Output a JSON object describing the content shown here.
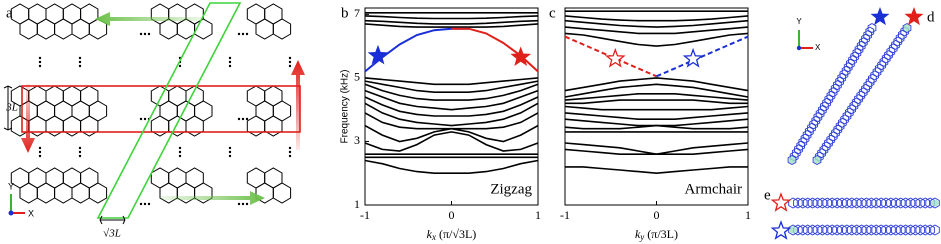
{
  "panel_labels": [
    "a",
    "b",
    "c",
    "d",
    "e"
  ],
  "panel_a": {
    "height_label": "3L",
    "width_label": "√3L",
    "axis_y": "Y",
    "axis_x": "X"
  },
  "panel_d": {
    "axis_y": "Y",
    "axis_x": "X"
  },
  "chart_data": [
    {
      "type": "line",
      "ylabel": "Frequency (kHz)",
      "xlabel": "k",
      "xlabel_sub": "x",
      "xlabel_unit": "(π/√3L)",
      "annotation": "Zigzag",
      "xlim": [
        -1,
        1
      ],
      "xticks": [
        -1,
        0,
        1
      ],
      "ylim": [
        1,
        7.2
      ],
      "yticks": [
        1,
        3,
        5,
        7
      ],
      "x": [
        -1,
        -0.8,
        -0.6,
        -0.4,
        -0.2,
        0,
        0.2,
        0.4,
        0.6,
        0.8,
        1
      ],
      "series": [
        {
          "color": "#000000",
          "values": [
            7.05,
            7.05,
            7.05,
            7.05,
            7.05,
            7.05,
            7.05,
            7.05,
            7.05,
            7.05,
            7.05
          ]
        },
        {
          "color": "#000000",
          "values": [
            6.95,
            6.93,
            6.9,
            6.88,
            6.87,
            6.87,
            6.87,
            6.88,
            6.9,
            6.93,
            6.95
          ]
        },
        {
          "color": "#000000",
          "values": [
            6.8,
            6.78,
            6.75,
            6.72,
            6.7,
            6.7,
            6.7,
            6.72,
            6.75,
            6.78,
            6.8
          ]
        },
        {
          "color": "#000000",
          "values": [
            6.7,
            6.66,
            6.62,
            6.6,
            6.6,
            6.6,
            6.6,
            6.6,
            6.62,
            6.66,
            6.7
          ]
        },
        {
          "color": "#1a2fd6",
          "values": [
            5.2,
            5.65,
            6.05,
            6.35,
            6.5,
            6.55,
            6.55,
            null,
            null,
            null,
            null
          ]
        },
        {
          "color": "#e0201b",
          "values": [
            null,
            null,
            null,
            null,
            null,
            6.55,
            6.55,
            6.4,
            6.1,
            5.7,
            5.2
          ]
        },
        {
          "color": "#000000",
          "values": [
            5.0,
            4.95,
            4.9,
            4.85,
            4.8,
            4.8,
            4.8,
            4.85,
            4.9,
            4.95,
            5.0
          ]
        },
        {
          "color": "#000000",
          "values": [
            4.9,
            4.8,
            4.7,
            4.6,
            4.55,
            4.55,
            4.55,
            4.6,
            4.7,
            4.8,
            4.9
          ]
        },
        {
          "color": "#000000",
          "values": [
            4.8,
            4.6,
            4.45,
            4.35,
            4.3,
            4.3,
            4.3,
            4.35,
            4.45,
            4.6,
            4.8
          ]
        },
        {
          "color": "#000000",
          "values": [
            4.6,
            4.4,
            4.2,
            4.1,
            4.05,
            4.0,
            4.05,
            4.1,
            4.2,
            4.4,
            4.6
          ]
        },
        {
          "color": "#000000",
          "values": [
            4.4,
            4.15,
            3.95,
            3.85,
            3.8,
            3.8,
            3.8,
            3.85,
            3.95,
            4.15,
            4.4
          ]
        },
        {
          "color": "#000000",
          "values": [
            4.2,
            3.9,
            3.7,
            3.6,
            3.55,
            3.5,
            3.55,
            3.6,
            3.7,
            3.9,
            4.2
          ]
        },
        {
          "color": "#000000",
          "values": [
            3.9,
            3.6,
            3.45,
            3.4,
            3.4,
            3.4,
            3.4,
            3.4,
            3.45,
            3.6,
            3.9
          ]
        },
        {
          "color": "#000000",
          "values": [
            3.5,
            3.2,
            3.0,
            3.1,
            3.3,
            3.4,
            3.3,
            3.1,
            3.0,
            3.2,
            3.5
          ]
        },
        {
          "color": "#000000",
          "values": [
            2.95,
            2.75,
            2.7,
            2.9,
            3.2,
            3.3,
            3.2,
            2.9,
            2.7,
            2.75,
            2.95
          ]
        },
        {
          "color": "#000000",
          "values": [
            2.6,
            2.6,
            2.6,
            2.6,
            2.6,
            2.6,
            2.6,
            2.6,
            2.6,
            2.6,
            2.6
          ]
        },
        {
          "color": "#000000",
          "values": [
            2.5,
            2.5,
            2.5,
            2.5,
            2.5,
            2.5,
            2.5,
            2.5,
            2.5,
            2.5,
            2.5
          ]
        },
        {
          "color": "#000000",
          "values": [
            2.4,
            2.3,
            2.15,
            2.05,
            2.0,
            2.0,
            2.0,
            2.05,
            2.15,
            2.3,
            2.4
          ]
        }
      ],
      "markers": [
        {
          "x": -0.85,
          "y": 5.7,
          "color": "#1a2fd6",
          "filled": true
        },
        {
          "x": 0.8,
          "y": 5.65,
          "color": "#e0201b",
          "filled": true
        }
      ]
    },
    {
      "type": "line",
      "xlabel": "k",
      "xlabel_sub": "y",
      "xlabel_unit": "(π/3L)",
      "annotation": "Armchair",
      "xlim": [
        -1,
        1
      ],
      "xticks": [
        -1,
        0,
        1
      ],
      "ylim": [
        1,
        7.2
      ],
      "x": [
        -1,
        -0.8,
        -0.6,
        -0.4,
        -0.2,
        0,
        0.2,
        0.4,
        0.6,
        0.8,
        1
      ],
      "series": [
        {
          "color": "#000000",
          "values": [
            7.1,
            7.1,
            7.1,
            7.1,
            7.1,
            7.1,
            7.1,
            7.1,
            7.1,
            7.1,
            7.1
          ]
        },
        {
          "color": "#000000",
          "values": [
            6.95,
            6.9,
            6.85,
            6.82,
            6.8,
            6.8,
            6.8,
            6.82,
            6.85,
            6.9,
            6.95
          ]
        },
        {
          "color": "#000000",
          "values": [
            6.8,
            6.75,
            6.7,
            6.65,
            6.62,
            6.6,
            6.62,
            6.65,
            6.7,
            6.75,
            6.8
          ]
        },
        {
          "color": "#000000",
          "values": [
            6.6,
            6.55,
            6.5,
            6.45,
            6.4,
            6.4,
            6.4,
            6.45,
            6.5,
            6.55,
            6.6
          ]
        },
        {
          "color": "#000000",
          "values": [
            6.4,
            6.35,
            6.25,
            6.15,
            6.05,
            6.0,
            6.05,
            6.15,
            6.25,
            6.35,
            6.4
          ]
        },
        {
          "color": "#e0201b",
          "dashed": true,
          "values": [
            6.3,
            6.05,
            5.8,
            5.55,
            5.3,
            5.05,
            null,
            null,
            null,
            null,
            null
          ]
        },
        {
          "color": "#1a2fd6",
          "dashed": true,
          "values": [
            null,
            null,
            null,
            null,
            null,
            5.05,
            5.3,
            5.55,
            5.8,
            6.05,
            6.3
          ]
        },
        {
          "color": "#000000",
          "values": [
            4.6,
            4.7,
            4.8,
            4.9,
            4.95,
            5.0,
            4.95,
            4.9,
            4.8,
            4.7,
            4.6
          ]
        },
        {
          "color": "#000000",
          "values": [
            4.4,
            4.5,
            4.6,
            4.7,
            4.75,
            4.8,
            4.75,
            4.7,
            4.6,
            4.5,
            4.4
          ]
        },
        {
          "color": "#000000",
          "values": [
            4.3,
            4.35,
            4.4,
            4.45,
            4.5,
            4.5,
            4.5,
            4.45,
            4.4,
            4.35,
            4.3
          ]
        },
        {
          "color": "#000000",
          "values": [
            4.2,
            4.2,
            4.25,
            4.3,
            4.3,
            4.3,
            4.3,
            4.3,
            4.25,
            4.2,
            4.2
          ]
        },
        {
          "color": "#000000",
          "values": [
            4.1,
            4.05,
            4.0,
            4.0,
            4.0,
            4.0,
            4.0,
            4.0,
            4.0,
            4.05,
            4.1
          ]
        },
        {
          "color": "#000000",
          "values": [
            3.9,
            3.85,
            3.8,
            3.75,
            3.7,
            3.7,
            3.7,
            3.75,
            3.8,
            3.85,
            3.9
          ]
        },
        {
          "color": "#000000",
          "values": [
            3.7,
            3.65,
            3.6,
            3.55,
            3.5,
            3.5,
            3.5,
            3.55,
            3.6,
            3.65,
            3.7
          ]
        },
        {
          "color": "#000000",
          "values": [
            3.45,
            3.4,
            3.4,
            3.4,
            3.45,
            3.5,
            3.45,
            3.4,
            3.4,
            3.4,
            3.45
          ]
        },
        {
          "color": "#000000",
          "values": [
            3.3,
            3.3,
            3.3,
            3.3,
            3.3,
            3.3,
            3.3,
            3.3,
            3.3,
            3.3,
            3.3
          ]
        },
        {
          "color": "#000000",
          "values": [
            2.95,
            2.9,
            2.85,
            2.8,
            2.7,
            2.6,
            2.7,
            2.8,
            2.85,
            2.9,
            2.95
          ]
        },
        {
          "color": "#000000",
          "values": [
            2.75,
            2.7,
            2.65,
            2.6,
            2.6,
            2.6,
            2.6,
            2.6,
            2.65,
            2.7,
            2.75
          ]
        },
        {
          "color": "#000000",
          "values": [
            2.2,
            2.2,
            2.15,
            2.1,
            2.05,
            2.0,
            2.05,
            2.1,
            2.15,
            2.2,
            2.2
          ]
        }
      ],
      "markers": [
        {
          "x": -0.45,
          "y": 5.6,
          "color": "#e0201b",
          "filled": false
        },
        {
          "x": 0.4,
          "y": 5.6,
          "color": "#1a2fd6",
          "filled": false
        }
      ]
    }
  ]
}
